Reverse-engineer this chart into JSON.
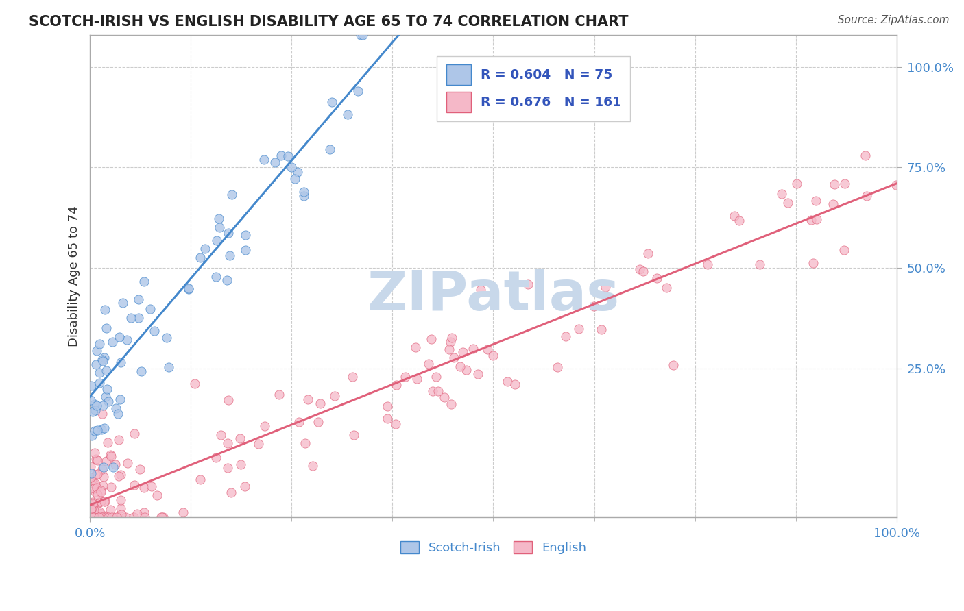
{
  "title": "SCOTCH-IRISH VS ENGLISH DISABILITY AGE 65 TO 74 CORRELATION CHART",
  "source_text": "Source: ZipAtlas.com",
  "ylabel": "Disability Age 65 to 74",
  "xlim": [
    0.0,
    1.0
  ],
  "ylim": [
    -0.12,
    1.08
  ],
  "scotch_irish_R": 0.604,
  "scotch_irish_N": 75,
  "english_R": 0.676,
  "english_N": 161,
  "scotch_irish_color": "#aec6e8",
  "english_color": "#f5b8c8",
  "scotch_irish_line_color": "#4488cc",
  "english_line_color": "#e0607a",
  "legend_text_color": "#3355bb",
  "background_color": "#ffffff",
  "watermark_color": "#c8d8ea",
  "grid_color": "#cccccc",
  "title_color": "#222222",
  "source_color": "#555555",
  "si_slope": 2.35,
  "si_intercept": 0.18,
  "en_slope": 0.8,
  "en_intercept": -0.09,
  "tick_label_color": "#4488cc"
}
